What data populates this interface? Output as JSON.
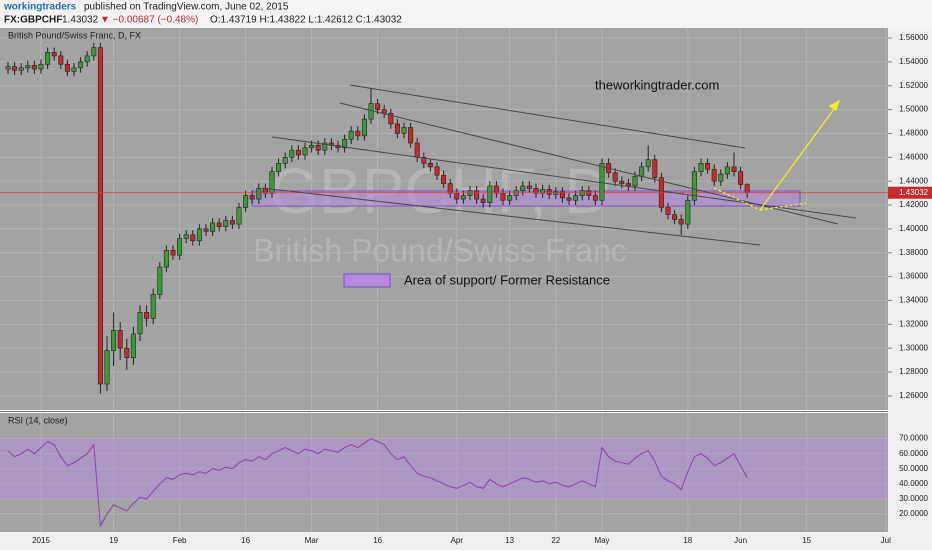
{
  "header": {
    "user": "workingtraders",
    "published": "published on TradingView.com, June 02, 2015",
    "symbol": "FX:GBPCHF",
    "price": "1.43032",
    "change": "▼ −0.00687 (−0.48%)",
    "ohlc": "O:1.43719 H:1.43822 L:1.42612 C:1.43032"
  },
  "chart_data": {
    "type": "candlestick",
    "title": "British Pound/Swiss Franc, D, FX",
    "watermark": {
      "symbol": "GBPCHF, D",
      "name": "British Pound/Swiss Franc"
    },
    "annotations": {
      "site": "theworkingtrader.com",
      "zone": "Area of support/ Former Resistance"
    },
    "up_color": "#3c9a3c",
    "down_color": "#c62a2a",
    "last_price": 1.43032,
    "categories": [
      null,
      null,
      null,
      null,
      null,
      "2015",
      null,
      null,
      null,
      null,
      null,
      null,
      null,
      null,
      null,
      null,
      "19",
      null,
      null,
      null,
      null,
      null,
      null,
      null,
      null,
      null,
      "Feb",
      null,
      null,
      null,
      null,
      null,
      null,
      null,
      null,
      null,
      "16",
      null,
      null,
      null,
      null,
      null,
      null,
      null,
      null,
      null,
      "Mar",
      null,
      null,
      null,
      null,
      null,
      null,
      null,
      null,
      null,
      "16",
      null,
      null,
      null,
      null,
      null,
      null,
      null,
      null,
      null,
      null,
      null,
      "Apr",
      null,
      null,
      null,
      null,
      null,
      null,
      null,
      "13",
      null,
      null,
      null,
      null,
      null,
      null,
      "22",
      null,
      null,
      null,
      null,
      null,
      null,
      "May",
      null,
      null,
      null,
      null,
      null,
      null,
      null,
      null,
      null,
      null,
      null,
      null,
      "18",
      null,
      null,
      null,
      null,
      null,
      null,
      null,
      "Jun",
      null,
      null,
      null,
      null,
      null,
      null,
      null,
      null,
      null,
      "15",
      null,
      null,
      null,
      null,
      null,
      null,
      null,
      null,
      null,
      null,
      null,
      "Jul"
    ],
    "open": [
      1.534,
      1.536,
      1.533,
      1.535,
      1.537,
      1.534,
      1.538,
      1.548,
      1.545,
      1.538,
      1.532,
      1.535,
      1.54,
      1.545,
      1.552,
      1.27,
      1.298,
      1.315,
      1.3,
      1.292,
      1.312,
      1.33,
      1.325,
      1.345,
      1.368,
      1.382,
      1.378,
      1.392,
      1.395,
      1.39,
      1.4,
      1.398,
      1.405,
      1.402,
      1.407,
      1.404,
      1.418,
      1.428,
      1.425,
      1.434,
      1.43,
      1.448,
      1.455,
      1.46,
      1.466,
      1.462,
      1.468,
      1.47,
      1.466,
      1.472,
      1.47,
      1.468,
      1.475,
      1.482,
      1.478,
      1.492,
      1.505,
      1.5,
      1.497,
      1.488,
      1.48,
      1.485,
      1.472,
      1.46,
      1.455,
      1.452,
      1.445,
      1.438,
      1.43,
      1.425,
      1.428,
      1.432,
      1.425,
      1.422,
      1.436,
      1.43,
      1.424,
      1.428,
      1.432,
      1.436,
      1.434,
      1.43,
      1.433,
      1.429,
      1.431,
      1.426,
      1.424,
      1.428,
      1.432,
      1.428,
      1.424,
      1.455,
      1.447,
      1.44,
      1.438,
      1.436,
      1.444,
      1.452,
      1.458,
      1.443,
      1.418,
      1.412,
      1.408,
      1.404,
      1.424,
      1.448,
      1.455,
      1.45,
      1.44,
      1.446,
      1.452,
      1.448,
      1.43719,
      null,
      null,
      null,
      null,
      null,
      null,
      null,
      null,
      null,
      null,
      null,
      null,
      null,
      null,
      null,
      null,
      null,
      null,
      null,
      null,
      null
    ],
    "high": [
      1.54,
      1.54,
      1.539,
      1.541,
      1.541,
      1.542,
      1.552,
      1.552,
      1.549,
      1.542,
      1.539,
      1.544,
      1.549,
      1.556,
      1.556,
      1.31,
      1.33,
      1.322,
      1.308,
      1.318,
      1.336,
      1.336,
      1.35,
      1.372,
      1.386,
      1.386,
      1.396,
      1.399,
      1.399,
      1.404,
      1.404,
      1.409,
      1.409,
      1.411,
      1.411,
      1.422,
      1.432,
      1.432,
      1.438,
      1.438,
      1.452,
      1.459,
      1.464,
      1.47,
      1.47,
      1.472,
      1.474,
      1.474,
      1.476,
      1.476,
      1.474,
      1.479,
      1.486,
      1.486,
      1.496,
      1.518,
      1.509,
      1.504,
      1.501,
      1.492,
      1.489,
      1.489,
      1.476,
      1.464,
      1.459,
      1.456,
      1.449,
      1.442,
      1.434,
      1.432,
      1.436,
      1.436,
      1.429,
      1.44,
      1.44,
      1.434,
      1.432,
      1.436,
      1.44,
      1.44,
      1.438,
      1.437,
      1.437,
      1.435,
      1.435,
      1.43,
      1.432,
      1.436,
      1.436,
      1.432,
      1.459,
      1.459,
      1.451,
      1.444,
      1.442,
      1.448,
      1.456,
      1.47,
      1.462,
      1.447,
      1.422,
      1.416,
      1.412,
      1.428,
      1.452,
      1.459,
      1.459,
      1.454,
      1.45,
      1.456,
      1.464,
      1.452,
      1.43822,
      null,
      null,
      null,
      null,
      null,
      null,
      null,
      null,
      null,
      null,
      null,
      null,
      null,
      null,
      null,
      null,
      null,
      null,
      null,
      null,
      null
    ],
    "low": [
      1.53,
      1.529,
      1.529,
      1.531,
      1.53,
      1.53,
      1.534,
      1.541,
      1.534,
      1.528,
      1.528,
      1.531,
      1.536,
      1.541,
      1.262,
      1.264,
      1.285,
      1.29,
      1.282,
      1.286,
      1.306,
      1.318,
      1.32,
      1.341,
      1.364,
      1.374,
      1.374,
      1.388,
      1.386,
      1.386,
      1.394,
      1.394,
      1.398,
      1.398,
      1.4,
      1.4,
      1.414,
      1.421,
      1.421,
      1.426,
      1.426,
      1.444,
      1.451,
      1.456,
      1.458,
      1.458,
      1.464,
      1.462,
      1.462,
      1.466,
      1.464,
      1.464,
      1.471,
      1.474,
      1.474,
      1.488,
      1.496,
      1.493,
      1.484,
      1.476,
      1.476,
      1.468,
      1.456,
      1.451,
      1.448,
      1.441,
      1.434,
      1.426,
      1.421,
      1.421,
      1.424,
      1.421,
      1.418,
      1.418,
      1.426,
      1.42,
      1.42,
      1.424,
      1.428,
      1.43,
      1.426,
      1.426,
      1.425,
      1.425,
      1.422,
      1.42,
      1.42,
      1.424,
      1.424,
      1.42,
      1.42,
      1.443,
      1.436,
      1.434,
      1.432,
      1.432,
      1.44,
      1.448,
      1.439,
      1.414,
      1.408,
      1.404,
      1.395,
      1.4,
      1.42,
      1.444,
      1.446,
      1.436,
      1.436,
      1.442,
      1.444,
      1.433,
      1.42612,
      null,
      null,
      null,
      null,
      null,
      null,
      null,
      null,
      null,
      null,
      null,
      null,
      null,
      null,
      null,
      null,
      null,
      null,
      null,
      null,
      null
    ],
    "close": [
      1.536,
      1.533,
      1.535,
      1.537,
      1.534,
      1.538,
      1.548,
      1.545,
      1.538,
      1.532,
      1.535,
      1.54,
      1.545,
      1.552,
      1.27,
      1.298,
      1.315,
      1.3,
      1.292,
      1.312,
      1.33,
      1.325,
      1.345,
      1.368,
      1.382,
      1.378,
      1.392,
      1.395,
      1.39,
      1.4,
      1.398,
      1.405,
      1.402,
      1.407,
      1.404,
      1.418,
      1.428,
      1.425,
      1.434,
      1.43,
      1.448,
      1.455,
      1.46,
      1.466,
      1.462,
      1.468,
      1.47,
      1.466,
      1.472,
      1.47,
      1.468,
      1.475,
      1.482,
      1.478,
      1.492,
      1.505,
      1.5,
      1.497,
      1.488,
      1.48,
      1.485,
      1.472,
      1.46,
      1.455,
      1.452,
      1.445,
      1.438,
      1.43,
      1.425,
      1.428,
      1.432,
      1.425,
      1.422,
      1.436,
      1.43,
      1.424,
      1.428,
      1.432,
      1.436,
      1.434,
      1.43,
      1.433,
      1.429,
      1.431,
      1.426,
      1.424,
      1.428,
      1.432,
      1.428,
      1.424,
      1.455,
      1.447,
      1.44,
      1.438,
      1.436,
      1.444,
      1.452,
      1.458,
      1.443,
      1.418,
      1.412,
      1.408,
      1.404,
      1.424,
      1.448,
      1.455,
      1.45,
      1.44,
      1.446,
      1.452,
      1.448,
      1.43719,
      1.43032,
      null,
      null,
      null,
      null,
      null,
      null,
      null,
      null,
      null,
      null,
      null,
      null,
      null,
      null,
      null,
      null,
      null,
      null,
      null,
      null,
      null
    ],
    "ylim": [
      1.2482,
      1.5684
    ],
    "yticks": [
      {
        "value": 1.26,
        "label": "1.26000"
      },
      {
        "value": 1.28,
        "label": "1.28000"
      },
      {
        "value": 1.3,
        "label": "1.30000"
      },
      {
        "value": 1.32,
        "label": "1.32000"
      },
      {
        "value": 1.34,
        "label": "1.34000"
      },
      {
        "value": 1.36,
        "label": "1.36000"
      },
      {
        "value": 1.38,
        "label": "1.38000"
      },
      {
        "value": 1.4,
        "label": "1.40000"
      },
      {
        "value": 1.42,
        "label": "1.42000"
      },
      {
        "value": 1.44,
        "label": "1.44000"
      },
      {
        "value": 1.46,
        "label": "1.46000"
      },
      {
        "value": 1.48,
        "label": "1.48000"
      },
      {
        "value": 1.5,
        "label": "1.50000"
      },
      {
        "value": 1.52,
        "label": "1.52000"
      },
      {
        "value": 1.54,
        "label": "1.54000"
      },
      {
        "value": 1.56,
        "label": "1.56000"
      }
    ],
    "rsi": {
      "title": "RSI (14, close)",
      "color": "#8e44ad",
      "band": [
        30,
        70
      ],
      "ylim": [
        8,
        87
      ],
      "yticks": [
        {
          "value": 20,
          "label": "20.0000"
        },
        {
          "value": 30,
          "label": "30.0000"
        },
        {
          "value": 40,
          "label": "40.0000"
        },
        {
          "value": 50,
          "label": "50.0000"
        },
        {
          "value": 60,
          "label": "60.0000"
        },
        {
          "value": 70,
          "label": "70.0000"
        }
      ],
      "values": [
        62,
        58,
        60,
        63,
        60,
        64,
        68,
        66,
        58,
        52,
        54,
        57,
        60,
        66,
        12,
        20,
        26,
        24,
        22,
        27,
        31,
        30,
        35,
        40,
        44,
        43,
        46,
        47,
        46,
        48,
        47,
        50,
        49,
        51,
        50,
        54,
        56,
        55,
        58,
        56,
        60,
        62,
        64,
        62,
        60,
        63,
        62,
        60,
        63,
        62,
        61,
        64,
        66,
        64,
        67,
        70,
        68,
        66,
        60,
        56,
        58,
        52,
        47,
        45,
        44,
        42,
        40,
        38,
        37,
        39,
        41,
        38,
        37,
        43,
        40,
        38,
        40,
        42,
        44,
        43,
        41,
        42,
        40,
        41,
        39,
        38,
        40,
        42,
        40,
        38,
        64,
        58,
        55,
        54,
        53,
        57,
        60,
        62,
        55,
        45,
        42,
        40,
        36,
        48,
        58,
        60,
        57,
        52,
        54,
        57,
        60,
        52,
        44,
        null,
        null,
        null,
        null,
        null,
        null,
        null,
        null,
        null,
        null,
        null,
        null,
        null,
        null,
        null,
        null,
        null,
        null,
        null,
        null,
        null
      ]
    },
    "grid": true
  }
}
